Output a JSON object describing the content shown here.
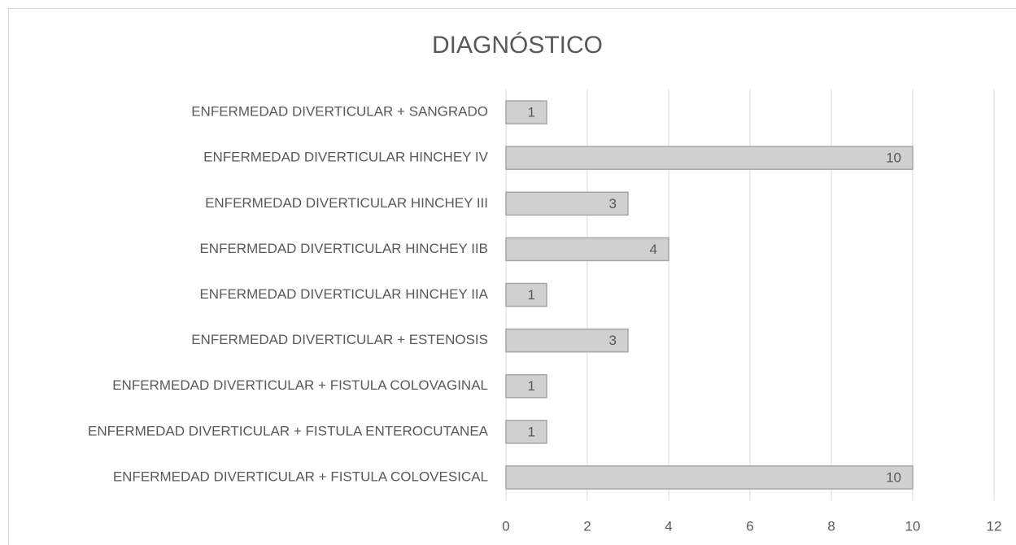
{
  "chart_data": {
    "type": "barh",
    "title": "DIAGNÓSTICO",
    "categories": [
      "ENFERMEDAD DIVERTICULAR + SANGRADO",
      "ENFERMEDAD DIVERTICULAR HINCHEY IV",
      "ENFERMEDAD DIVERTICULAR HINCHEY III",
      "ENFERMEDAD DIVERTICULAR HINCHEY IIB",
      "ENFERMEDAD DIVERTICULAR HINCHEY IIA",
      "ENFERMEDAD DIVERTICULAR + ESTENOSIS",
      "ENFERMEDAD DIVERTICULAR + FISTULA COLOVAGINAL",
      "ENFERMEDAD DIVERTICULAR + FISTULA ENTEROCUTANEA",
      "ENFERMEDAD DIVERTICULAR + FISTULA COLOVESICAL"
    ],
    "values": [
      1,
      10,
      3,
      4,
      1,
      3,
      1,
      1,
      10
    ],
    "color": "#d0d0d0",
    "xlim": [
      0,
      12
    ],
    "xticks": [
      0,
      2,
      4,
      6,
      8,
      10,
      12
    ],
    "grid": true
  }
}
